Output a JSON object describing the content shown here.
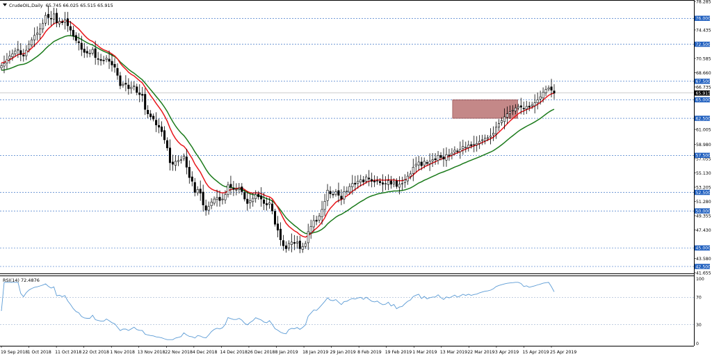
{
  "header": {
    "symbol": "CrudeOIL,Daily",
    "ohlc": "65.745 66.025 65.515 65.915",
    "rsi_label": "RSI(14) 72.4876"
  },
  "colors": {
    "bull": "#ffffff",
    "bear": "#000000",
    "ema_fast": "#e8161b",
    "ema_slow": "#1a7a1a",
    "rsi_line": "#5b9bd5",
    "level_line": "#1f5fbf",
    "level_box": "#1f5fbf",
    "zone": "#b06060"
  },
  "chart_data": [
    {
      "type": "candlestick",
      "title": "CrudeOIL,Daily",
      "ylim": [
        41.655,
        78.285
      ],
      "x_tick_labels": [
        "19 Sep 2018",
        "1 Oct 2018",
        "11 Oct 2018",
        "22 Oct 2018",
        "1 Nov 2018",
        "13 Nov 2018",
        "22 Nov 2018",
        "4 Dec 2018",
        "14 Dec 2018",
        "26 Dec 2018",
        "8 Jan 2019",
        "18 Jan 2019",
        "29 Jan 2019",
        "8 Feb 2019",
        "19 Feb 2019",
        "1 Mar 2019",
        "13 Mar 2019",
        "22 Mar 2019",
        "3 Apr 2019",
        "15 Apr 2019",
        "25 Apr 2019"
      ],
      "y_tick_labels": [
        "78.285",
        "74.435",
        "70.585",
        "68.660",
        "66.735",
        "61.005",
        "58.980",
        "57.055",
        "55.130",
        "53.205",
        "51.280",
        "49.355",
        "47.430",
        "43.580",
        "41.655"
      ],
      "horizontal_levels": [
        "76.000",
        "72.500",
        "67.500",
        "65.000",
        "62.500",
        "57.500",
        "52.500",
        "50.000",
        "45.000",
        "42.500"
      ],
      "current_price": "65.915",
      "zone": {
        "x_start_index": 164,
        "x_end_index": 180,
        "y_top": 65.0,
        "y_bottom": 62.5
      },
      "close": [
        69.6,
        69.9,
        70.4,
        70.9,
        71.2,
        71.6,
        71.8,
        71.1,
        70.9,
        71.7,
        72.5,
        73.1,
        73.7,
        74.0,
        74.6,
        75.3,
        76.4,
        76.1,
        75.9,
        76.6,
        75.4,
        75.6,
        75.4,
        75.8,
        75.0,
        74.4,
        73.6,
        73.0,
        72.7,
        71.8,
        71.4,
        71.3,
        71.3,
        71.8,
        70.7,
        70.5,
        70.3,
        70.3,
        70.6,
        70.2,
        69.7,
        69.4,
        68.3,
        66.9,
        67.1,
        67.1,
        66.5,
        66.7,
        66.9,
        66.0,
        65.7,
        65.6,
        63.7,
        63.1,
        62.7,
        62.4,
        61.6,
        61.3,
        60.7,
        59.6,
        58.5,
        56.5,
        56.3,
        56.7,
        56.8,
        56.9,
        57.4,
        55.9,
        54.5,
        54.0,
        52.5,
        52.9,
        52.4,
        50.8,
        50.1,
        50.6,
        51.2,
        51.6,
        51.8,
        51.4,
        51.6,
        52.2,
        53.5,
        53.2,
        52.9,
        52.9,
        53.1,
        52.6,
        51.6,
        51.0,
        51.4,
        51.7,
        52.2,
        51.9,
        51.6,
        51.0,
        50.8,
        51.1,
        50.0,
        48.2,
        47.4,
        46.1,
        45.3,
        44.9,
        45.6,
        45.8,
        45.6,
        45.8,
        44.9,
        45.2,
        45.6,
        47.2,
        47.9,
        48.7,
        48.6,
        49.3,
        50.2,
        51.3,
        52.8,
        52.3,
        52.2,
        52.6,
        52.1,
        51.6,
        52.6,
        52.7,
        53.3,
        53.7,
        53.6,
        54.0,
        54.2,
        53.9,
        54.6,
        54.3,
        54.0,
        53.9,
        54.1,
        53.8,
        53.6,
        53.7,
        54.1,
        53.6,
        53.9,
        53.3,
        53.6,
        53.7,
        54.2,
        54.7,
        55.0,
        55.9,
        56.3,
        56.6,
        56.1,
        56.7,
        56.4,
        56.7,
        56.9,
        56.9,
        57.5,
        57.2,
        57.0,
        57.6,
        57.5,
        57.8,
        58.2,
        58.0,
        58.3,
        58.7,
        58.6,
        58.9,
        58.8,
        59.0,
        59.1,
        59.4,
        59.6,
        59.8,
        59.9,
        60.1,
        60.5,
        61.3,
        61.8,
        62.2,
        62.7,
        63.1,
        63.4,
        63.6,
        63.9,
        64.1,
        64.0,
        63.8,
        64.1,
        64.0,
        64.3,
        64.6,
        65.0,
        65.4,
        66.0,
        66.4,
        66.6,
        66.3,
        65.9
      ],
      "ema_fast": [],
      "ema_slow": [],
      "rsi": {
        "label": "RSI(14) 72.4876",
        "ylim": [
          0,
          100
        ],
        "levels": [
          70,
          30
        ],
        "y_tick_labels": [
          "100",
          "70",
          "30",
          "0"
        ]
      }
    }
  ]
}
